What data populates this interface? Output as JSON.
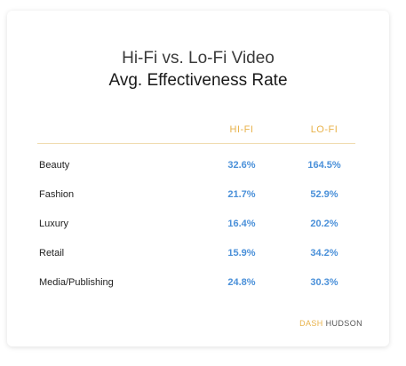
{
  "chart_data": {
    "type": "table",
    "title": "Hi-Fi vs. Lo-Fi Video",
    "subtitle": "Avg. Effectiveness Rate",
    "columns": [
      "HI-FI",
      "LO-FI"
    ],
    "rows": [
      {
        "label": "Beauty",
        "hifi": "32.6%",
        "lofi": "164.5%"
      },
      {
        "label": "Fashion",
        "hifi": "21.7%",
        "lofi": "52.9%"
      },
      {
        "label": "Luxury",
        "hifi": "16.4%",
        "lofi": "20.2%"
      },
      {
        "label": "Retail",
        "hifi": "15.9%",
        "lofi": "34.2%"
      },
      {
        "label": "Media/Publishing",
        "hifi": "24.8%",
        "lofi": "30.3%"
      }
    ]
  },
  "brand": {
    "part1": "DASH",
    "part2": "HUDSON"
  },
  "colors": {
    "accent": "#e8b24a",
    "value": "#4a90d9"
  }
}
